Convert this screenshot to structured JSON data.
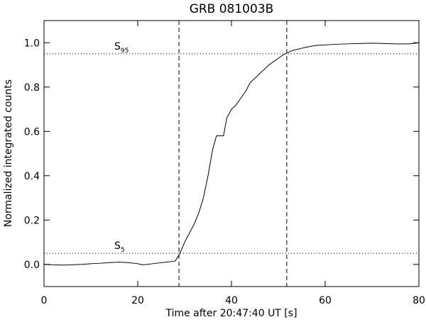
{
  "chart_data": {
    "type": "line",
    "title": "GRB 081003B",
    "x_label": "Time after 20:47:40 UT [s]",
    "y_label": "Normalized integrated counts",
    "x": [
      0,
      2,
      4,
      6,
      8,
      10,
      12,
      14,
      16,
      18,
      20,
      21,
      22,
      24,
      26,
      28,
      29,
      30,
      31,
      32,
      33,
      34,
      35,
      36,
      36.8,
      38,
      38.3,
      39,
      40,
      41,
      42,
      43,
      44,
      45,
      46,
      47,
      48,
      49,
      50,
      51,
      52,
      53,
      54,
      55,
      56,
      58,
      60,
      62,
      65,
      70,
      75,
      78,
      80
    ],
    "series": [
      {
        "name": "integrated counts",
        "color": "#000000",
        "values": [
          0.0,
          -0.002,
          -0.003,
          -0.002,
          0.0,
          0.003,
          0.005,
          0.008,
          0.01,
          0.008,
          0.003,
          -0.002,
          0.0,
          0.005,
          0.01,
          0.015,
          0.05,
          0.1,
          0.14,
          0.18,
          0.23,
          0.3,
          0.4,
          0.52,
          0.58,
          0.58,
          0.58,
          0.66,
          0.7,
          0.72,
          0.75,
          0.78,
          0.82,
          0.84,
          0.86,
          0.88,
          0.9,
          0.915,
          0.93,
          0.945,
          0.955,
          0.965,
          0.97,
          0.975,
          0.98,
          0.988,
          0.99,
          0.993,
          0.995,
          0.998,
          0.995,
          0.995,
          1.0
        ]
      }
    ],
    "xlim": [
      0,
      80
    ],
    "xticks": [
      0,
      20,
      40,
      60,
      80
    ],
    "ylim": [
      -0.1,
      1.1
    ],
    "yticks": [
      {
        "value": 0.0,
        "label": "0.0"
      },
      0.2,
      0.4,
      0.6,
      0.8,
      {
        "value": 1.0,
        "label": "1.0"
      }
    ],
    "hlines": [
      {
        "y": 0.95,
        "label": "S",
        "subscript": "95",
        "x": 15
      },
      {
        "y": 0.05,
        "label": "S",
        "subscript": "5",
        "x": 15
      }
    ],
    "vlines": [
      28.8,
      51.8
    ]
  }
}
